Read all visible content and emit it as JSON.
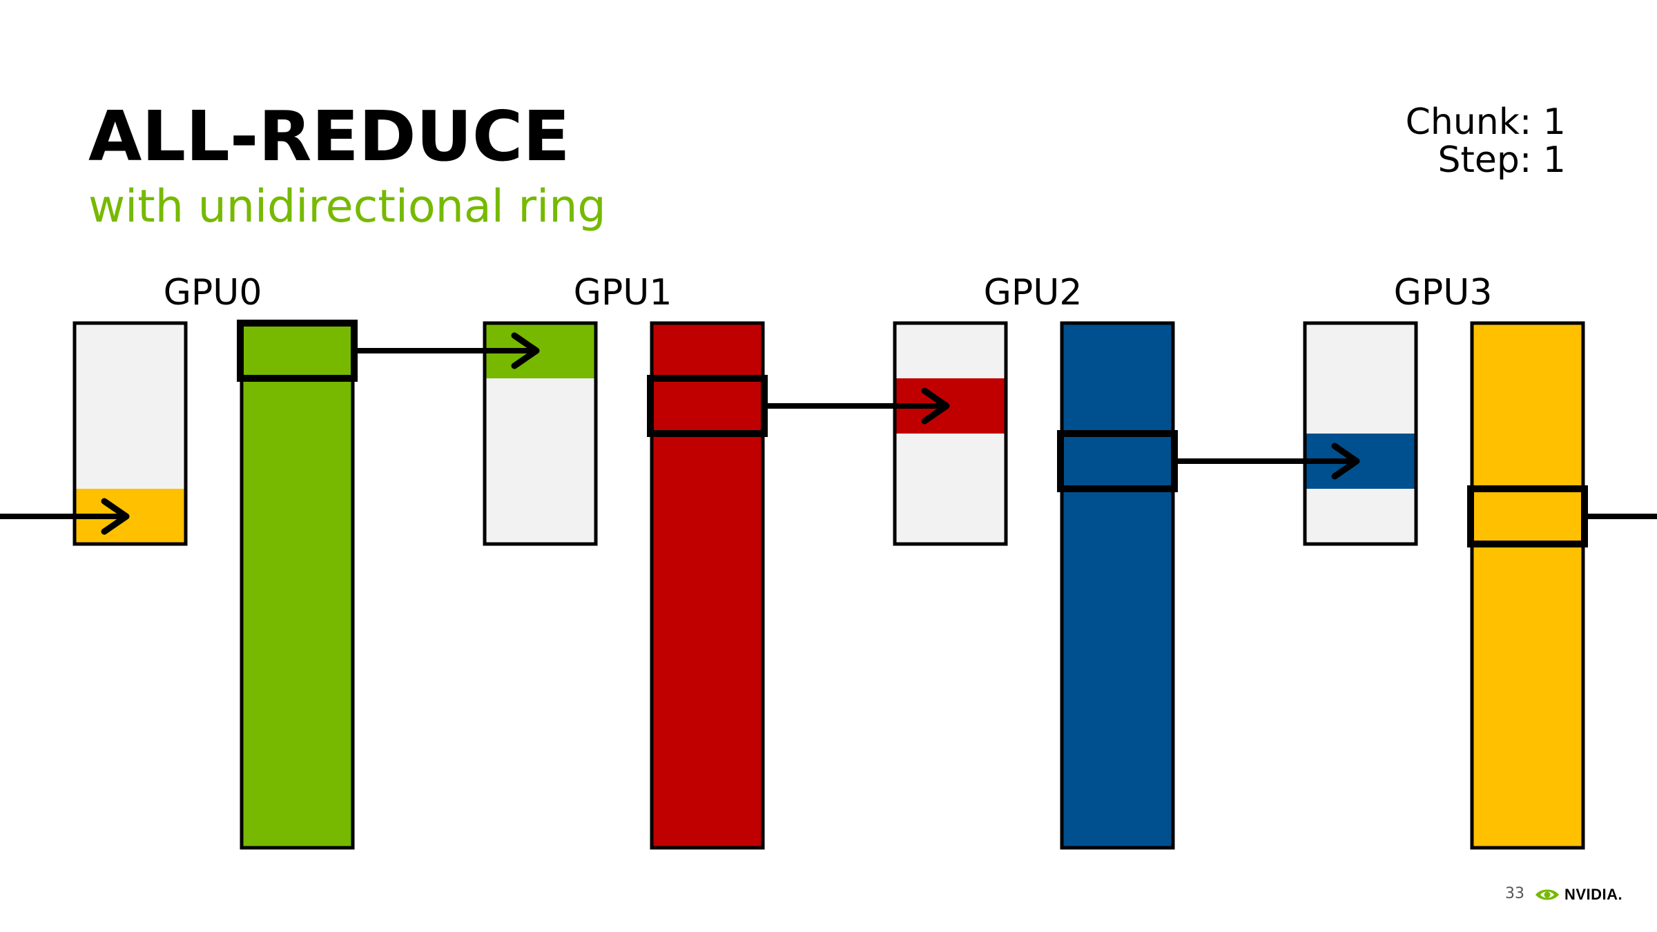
{
  "slide": {
    "title": "ALL-REDUCE",
    "subtitle": "with unidirectional ring"
  },
  "state": {
    "chunk": "Chunk: 1",
    "step": "Step: 1"
  },
  "colors": {
    "green": "#76b900",
    "red": "#c00000",
    "blue": "#00508f",
    "yellow": "#ffc000",
    "buffer_empty": "#f2f2f2",
    "outline": "#000000",
    "subtitle": "#76b900"
  },
  "gpus": [
    {
      "label": "GPU0",
      "color": "green",
      "received_chunk": 3,
      "received_color": "yellow",
      "sending_chunk": 0
    },
    {
      "label": "GPU1",
      "color": "red",
      "received_chunk": 0,
      "received_color": "green",
      "sending_chunk": 1
    },
    {
      "label": "GPU2",
      "color": "blue",
      "received_chunk": 1,
      "received_color": "red",
      "sending_chunk": 2
    },
    {
      "label": "GPU3",
      "color": "yellow",
      "received_chunk": 2,
      "received_color": "blue",
      "sending_chunk": 3
    }
  ],
  "footer": {
    "page_number": "33",
    "brand": "NVIDIA."
  }
}
